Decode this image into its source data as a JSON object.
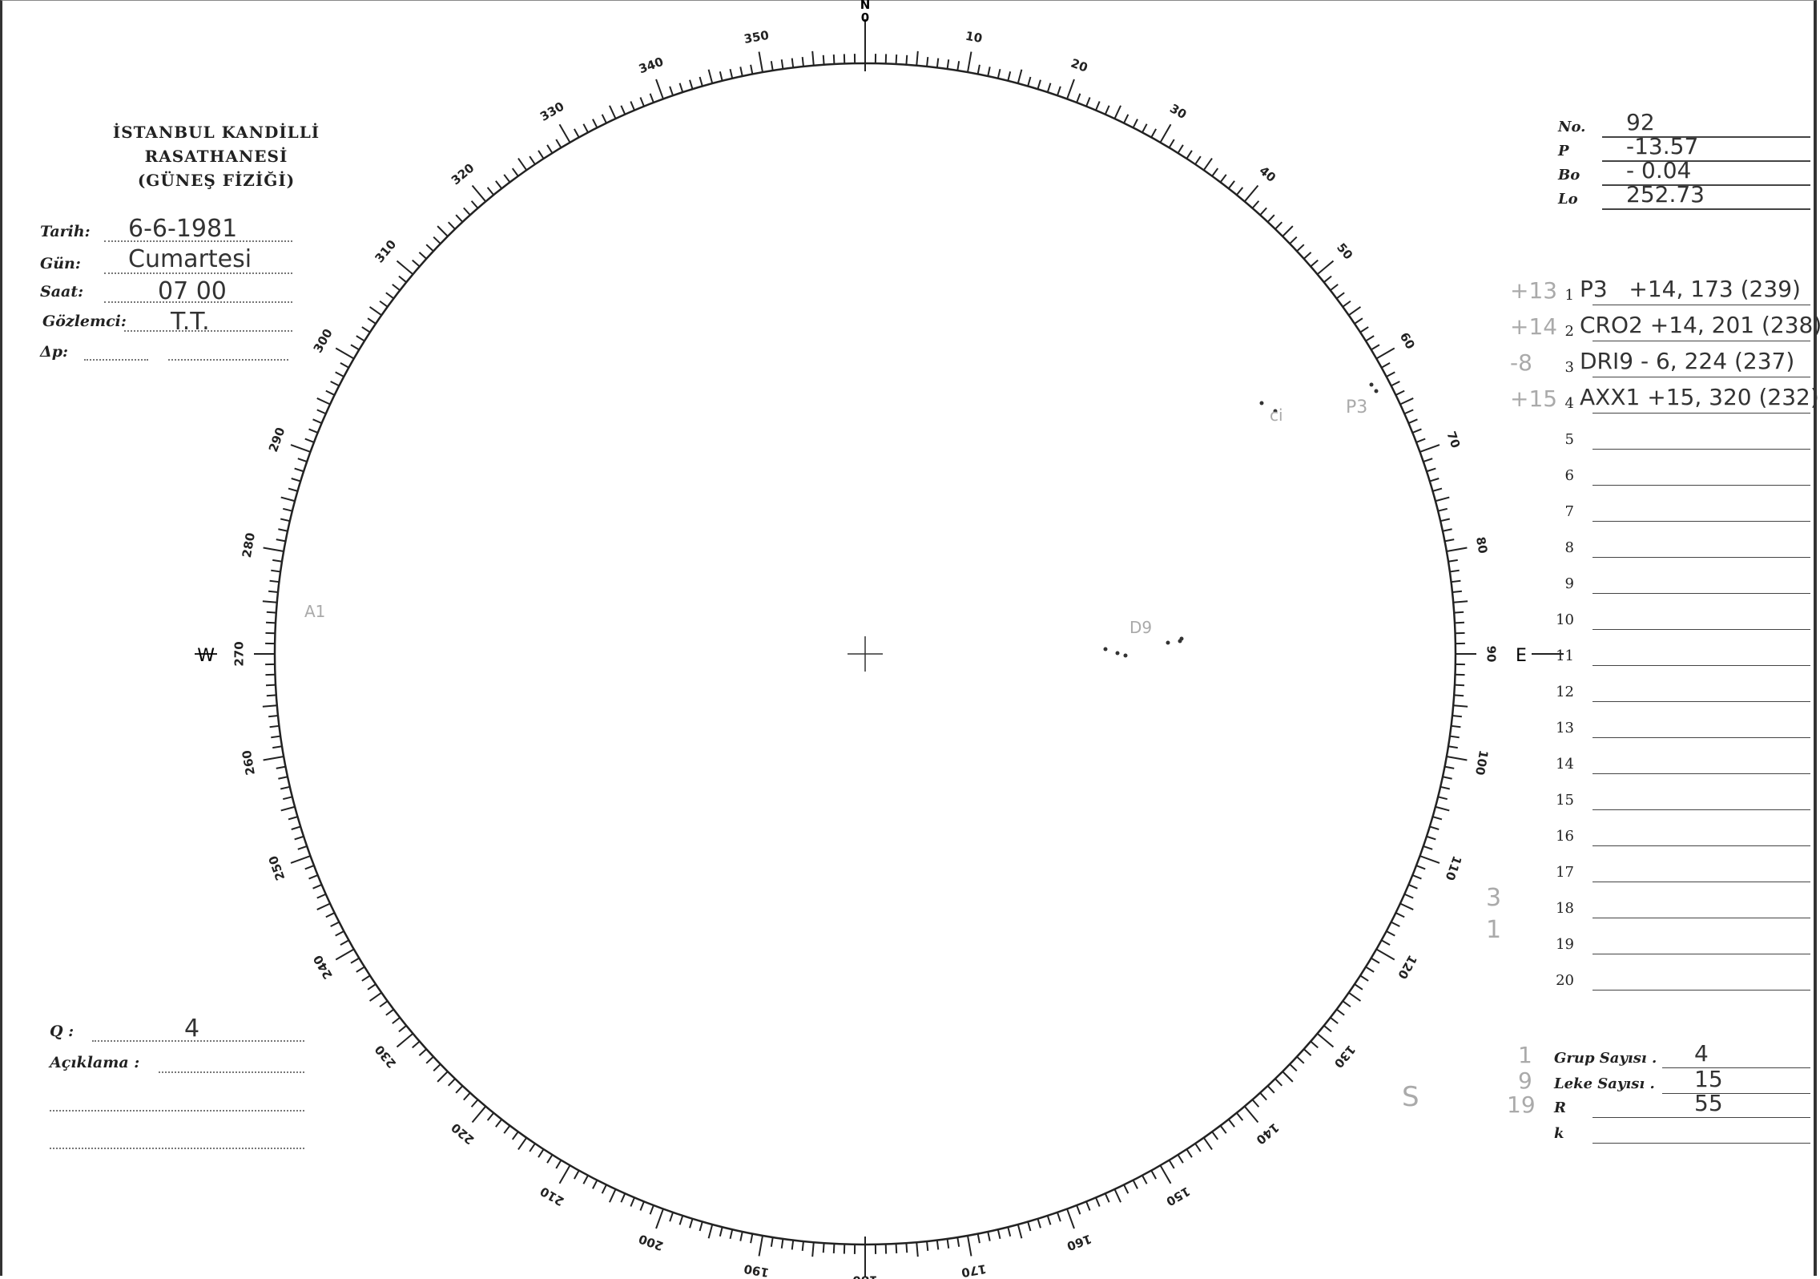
{
  "header": {
    "institution": "İSTANBUL KANDİLLİ RASATHANESİ",
    "department": "(GÜNEŞ FİZİĞİ)"
  },
  "fields": {
    "tarih": {
      "label": "Tarih:",
      "value": "6-6-1981"
    },
    "gun": {
      "label": "Gün:",
      "value": "Cumartesi"
    },
    "saat": {
      "label": "Saat:",
      "value": "07 00"
    },
    "gozlemci": {
      "label": "Gözlemci:",
      "value": "T.T."
    },
    "delta_p": {
      "label": "Δp:",
      "value": ""
    },
    "q": {
      "label": "Q :",
      "value": "4"
    },
    "aciklama": {
      "label": "Açıklama :",
      "value": ""
    }
  },
  "params": [
    {
      "label": "No.",
      "value": "92"
    },
    {
      "label": "P",
      "value": "-13.57"
    },
    {
      "label": "Bo",
      "value": "- 0.04"
    },
    {
      "label": "Lo",
      "value": "252.73"
    }
  ],
  "groups": [
    {
      "n": "1",
      "pencil": "+13",
      "value": "P3   +14, 173 (239)"
    },
    {
      "n": "2",
      "pencil": "+14",
      "value": "CRO2 +14, 201 (238)"
    },
    {
      "n": "3",
      "pencil": "-8",
      "value": "DRI9 - 6, 224 (237)"
    },
    {
      "n": "4",
      "pencil": "+15",
      "value": "AXX1 +15, 320 (232)"
    },
    {
      "n": "5",
      "value": ""
    },
    {
      "n": "6",
      "value": ""
    },
    {
      "n": "7",
      "value": ""
    },
    {
      "n": "8",
      "value": ""
    },
    {
      "n": "9",
      "value": ""
    },
    {
      "n": "10",
      "value": ""
    },
    {
      "n": "11",
      "value": ""
    },
    {
      "n": "12",
      "value": ""
    },
    {
      "n": "13",
      "value": ""
    },
    {
      "n": "14",
      "value": ""
    },
    {
      "n": "15",
      "value": ""
    },
    {
      "n": "16",
      "value": ""
    },
    {
      "n": "17",
      "value": ""
    },
    {
      "n": "18",
      "value": ""
    },
    {
      "n": "19",
      "value": ""
    },
    {
      "n": "20",
      "value": ""
    }
  ],
  "summary": [
    {
      "label": "Grup Sayısı .",
      "value": "4",
      "pencil": "1"
    },
    {
      "label": "Leke Sayısı .",
      "value": "15",
      "pencil": "9"
    },
    {
      "label": "R",
      "value": "55",
      "pencil": "19"
    },
    {
      "label": "k",
      "value": ""
    }
  ],
  "disk": {
    "north": "N",
    "north_zero": "0",
    "east": "E",
    "west": "W",
    "annotations": {
      "ci": "ci",
      "p3": "P3",
      "d9": "D9",
      "a1": "A1",
      "s": "S",
      "three": "3",
      "one": "1"
    }
  }
}
